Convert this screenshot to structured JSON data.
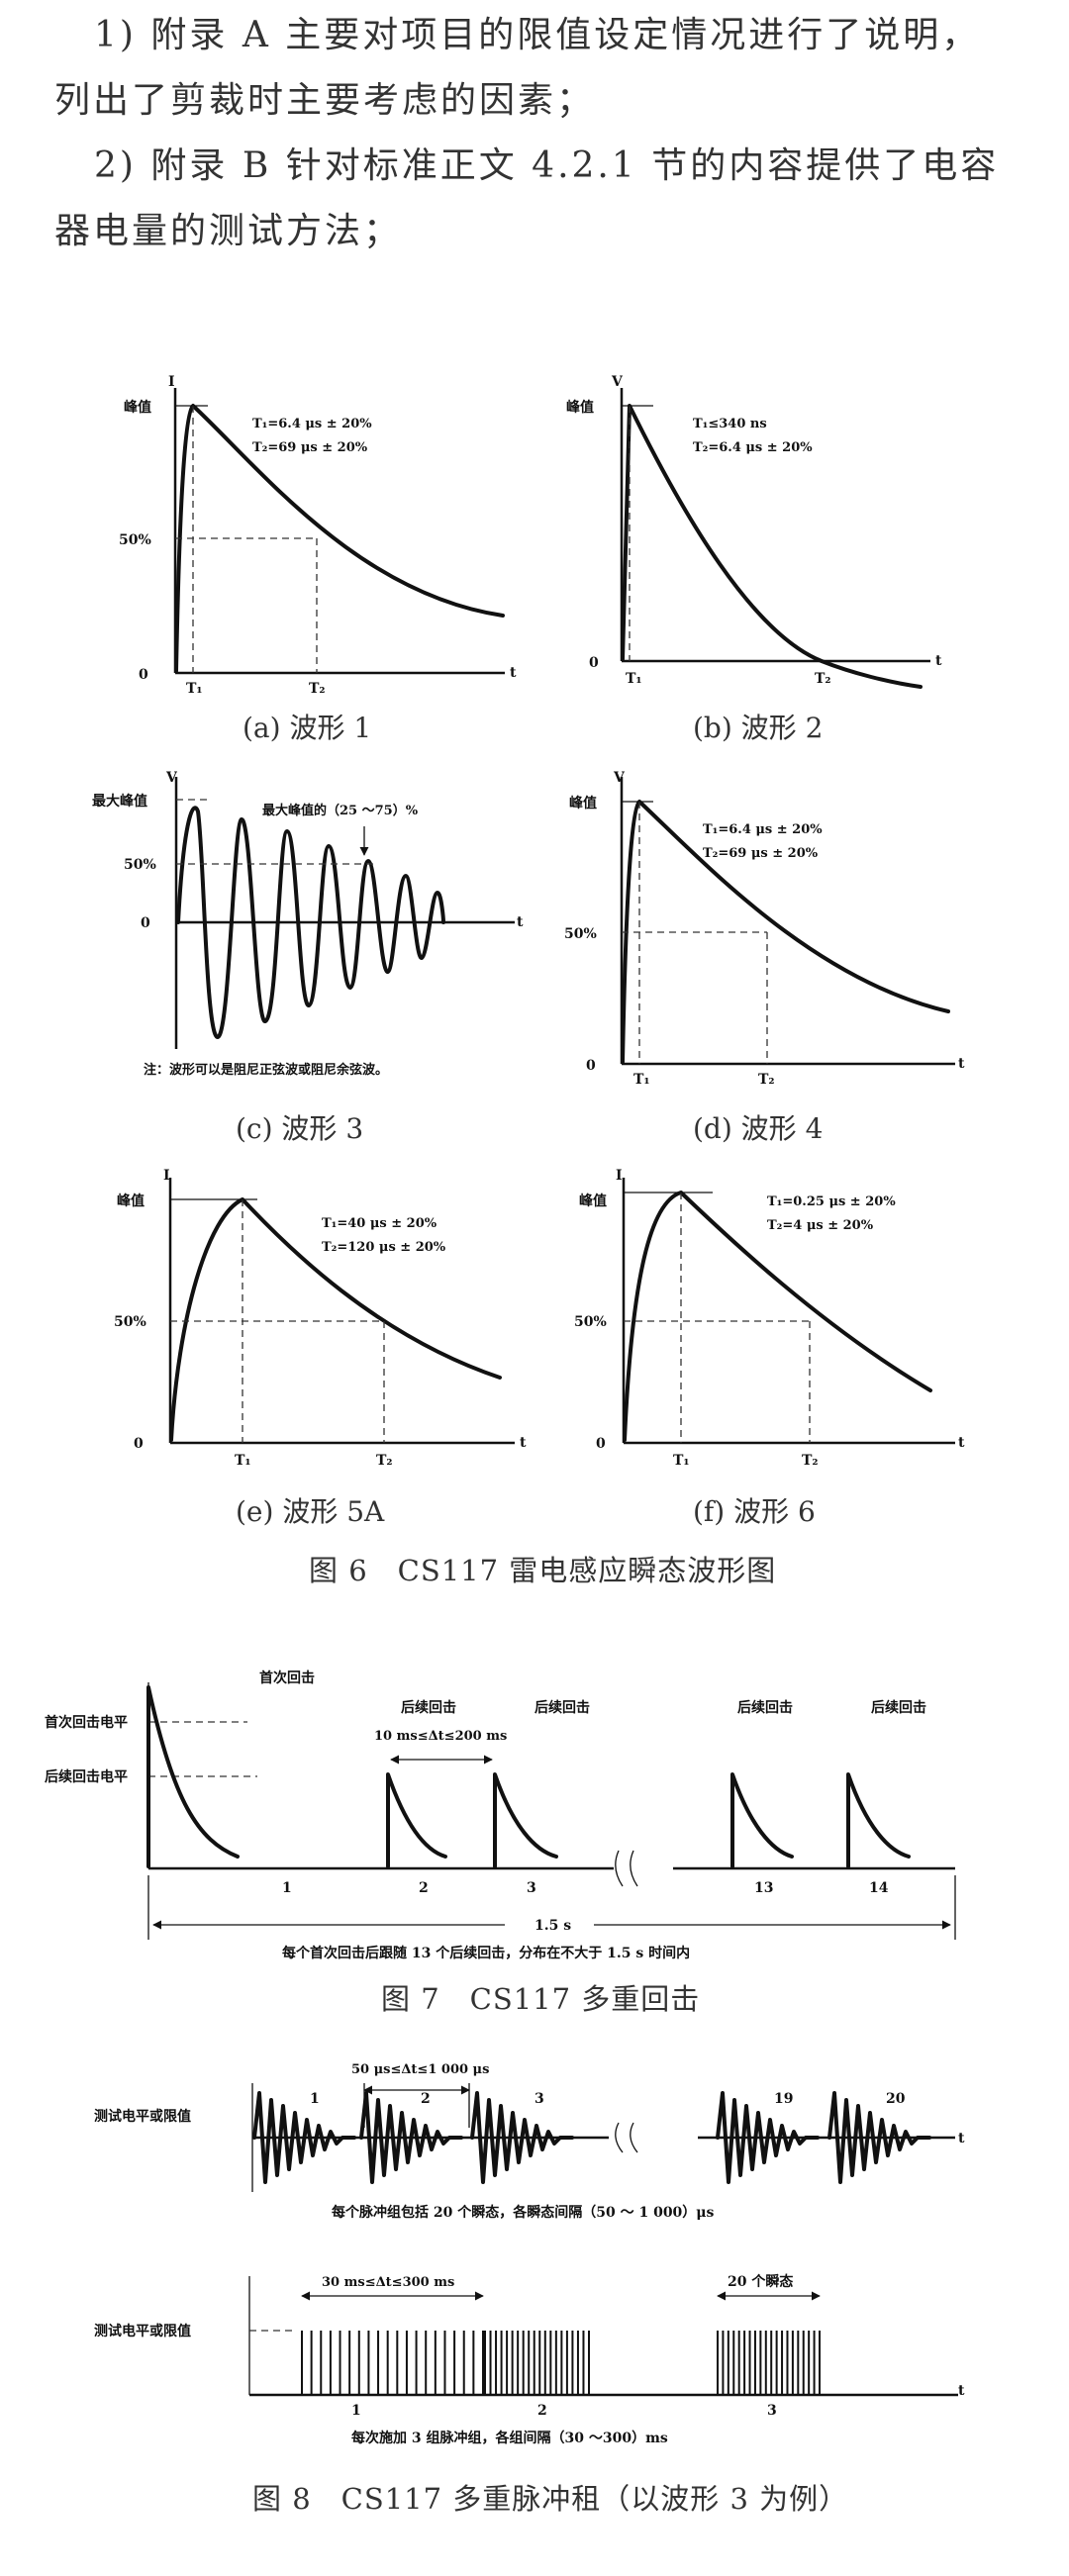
{
  "text": {
    "p1": "1) 附录 A 主要对项目的限值设定情况进行了说明，",
    "p1b": "列出了剪裁时主要考虑的因素；",
    "p2": "2) 附录 B 针对标准正文 4.2.1 节的内容提供了电容",
    "p2b": "器电量的测试方法；"
  },
  "fig6": {
    "caption": "图 6　CS117 雷电感应瞬态波形图",
    "w1": {
      "sub": "(a) 波形 1",
      "y": "I",
      "peak": "峰值",
      "half": "50%",
      "zero": "0",
      "t": "t",
      "t1": "T₁",
      "t2": "T₂",
      "p1": "T₁=6.4 μs ± 20%",
      "p2": "T₂=69 μs ± 20%"
    },
    "w2": {
      "sub": "(b) 波形 2",
      "y": "V",
      "peak": "峰值",
      "zero": "0",
      "t": "t",
      "t1": "T₁",
      "t2": "T₂",
      "p1": "T₁≤340 ns",
      "p2": "T₂=6.4 μs ± 20%"
    },
    "w3": {
      "sub": "(c) 波形 3",
      "y": "V",
      "peak": "最大峰值",
      "half": "50%",
      "zero": "0",
      "t": "t",
      "annot": "最大峰值的（25 ～75）%",
      "note": "注：波形可以是阻尼正弦波或阻尼余弦波。"
    },
    "w4": {
      "sub": "(d) 波形 4",
      "y": "V",
      "peak": "峰值",
      "half": "50%",
      "zero": "0",
      "t": "t",
      "t1": "T₁",
      "t2": "T₂",
      "p1": "T₁=6.4 μs ± 20%",
      "p2": "T₂=69 μs ± 20%"
    },
    "w5": {
      "sub": "(e) 波形 5A",
      "y": "I",
      "peak": "峰值",
      "half": "50%",
      "zero": "0",
      "t": "t",
      "t1": "T₁",
      "t2": "T₂",
      "p1": "T₁=40 μs ± 20%",
      "p2": "T₂=120 μs ± 20%"
    },
    "w6": {
      "sub": "(f) 波形 6",
      "y": "I",
      "peak": "峰值",
      "half": "50%",
      "zero": "0",
      "t": "t",
      "t1": "T₁",
      "t2": "T₂",
      "p1": "T₁=0.25 μs ± 20%",
      "p2": "T₂=4 μs ± 20%"
    }
  },
  "fig7": {
    "caption": "图 7　CS117 多重回击",
    "first_level": "首次回击电平",
    "subseq_level": "后续回击电平",
    "first": "首次回击",
    "subseq": "后续回击",
    "interval": "10 ms≤Δt≤200 ms",
    "n1": "1",
    "n2": "2",
    "n3": "3",
    "n13": "13",
    "n14": "14",
    "span": "1.5 s",
    "note": "每个首次回击后跟随 13 个后续回击，分布在不大于 1.5 s 时间内"
  },
  "fig8": {
    "caption": "图 8　CS117 多重脉冲租（以波形 3 为例）",
    "level": "测试电平或限值",
    "level2": "测试电平或限值",
    "interval1": "50 μs≤Δt≤1 000 μs",
    "n1": "1",
    "n2": "2",
    "n3": "3",
    "n19": "19",
    "n20": "20",
    "t": "t",
    "note1": "每个脉冲组包括 20 个瞬态，各瞬态间隔（50 ～ 1 000）μs",
    "interval2": "30 ms≤Δt≤300 ms",
    "count": "20 个瞬态",
    "g1": "1",
    "g2": "2",
    "g3": "3",
    "t2": "t",
    "note2": "每次施加 3 组脉冲组，各组间隔（30 ～300）ms"
  }
}
